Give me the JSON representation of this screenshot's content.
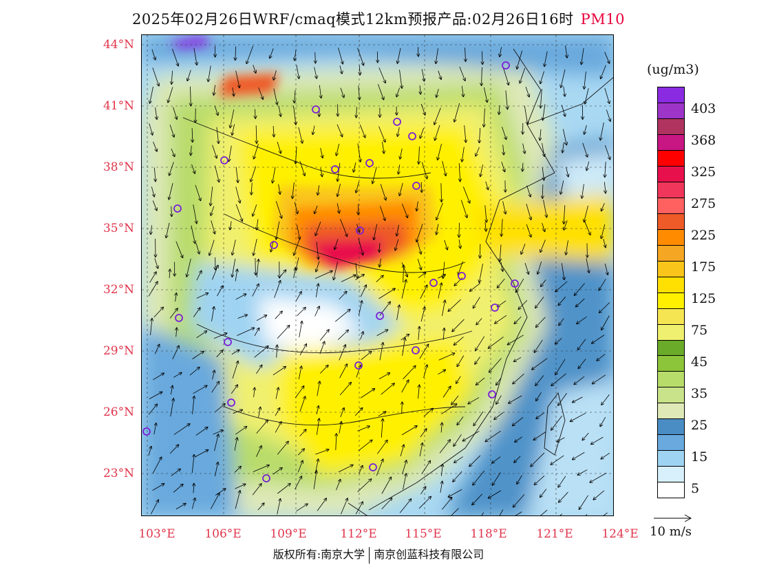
{
  "title": {
    "main": "2025年02月26日WRF/cmaq模式12km预报产品:02月26日16时",
    "variable": "PM10"
  },
  "axes": {
    "lat_labels": [
      "44°N",
      "41°N",
      "38°N",
      "35°N",
      "32°N",
      "29°N",
      "26°N",
      "23°N"
    ],
    "lon_labels": [
      "103°E",
      "106°E",
      "109°E",
      "112°E",
      "115°E",
      "118°E",
      "121°E",
      "124°E"
    ]
  },
  "legend": {
    "unit": "(ug/m3)",
    "colors": [
      "#8a2be2",
      "#9d35c9",
      "#b0335f",
      "#c81683",
      "#ff0000",
      "#e8104c",
      "#f0365a",
      "#ff6060",
      "#ee5a28",
      "#ff8c00",
      "#f5a623",
      "#f9c51a",
      "#ffe000",
      "#fff000",
      "#f6e552",
      "#f0f070",
      "#6aab2a",
      "#8cc43a",
      "#b8dc6a",
      "#c9e38a",
      "#dfe9b8",
      "#4a8cc4",
      "#69a9dd",
      "#9fd3f2",
      "#d8f0fb",
      "#ffffff"
    ],
    "labels": [
      "403",
      "368",
      "325",
      "275",
      "225",
      "175",
      "125",
      "75",
      "45",
      "35",
      "25",
      "15",
      "5"
    ],
    "label_slots": [
      1,
      3,
      5,
      7,
      9,
      11,
      13,
      15,
      17,
      19,
      21,
      23,
      25
    ]
  },
  "vector_legend": {
    "label": "10 m/s"
  },
  "footer": {
    "left": "版权所有:南京大学",
    "right": "南京创蓝科技有限公司"
  }
}
